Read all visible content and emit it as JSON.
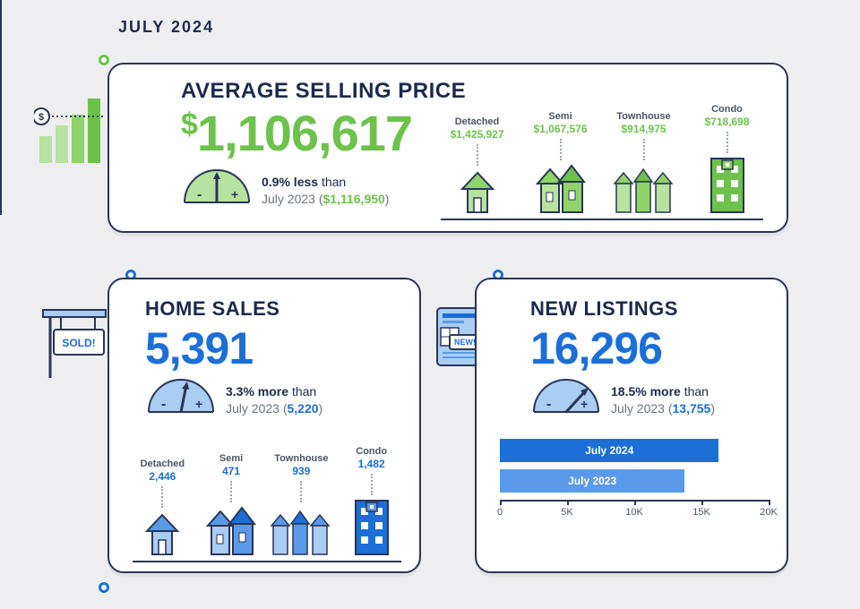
{
  "period": "JULY 2024",
  "colors": {
    "bg": "#eeeef0",
    "card_bg": "#ffffff",
    "outline": "#2a3556",
    "text_dark": "#1b2a4e",
    "text_muted": "#6b7280",
    "green": "#6cc24a",
    "green_light": "#b6e39f",
    "blue": "#1b6fd6",
    "blue_mid": "#5a9ae8",
    "blue_light": "#a9cdf3"
  },
  "avg_price": {
    "title": "AVERAGE SELLING PRICE",
    "currency": "$",
    "value": "1,106,617",
    "delta_pct": "0.9% less",
    "delta_word": "than",
    "prev_label": "July 2023",
    "prev_value": "$1,116,950",
    "breakdown": [
      {
        "label": "Detached",
        "value": "$1,425,927",
        "icon": "house",
        "shade": "light"
      },
      {
        "label": "Semi",
        "value": "$1,067,576",
        "icon": "semi",
        "shade": "mid"
      },
      {
        "label": "Townhouse",
        "value": "$914,975",
        "icon": "townrow",
        "shade": "mid"
      },
      {
        "label": "Condo",
        "value": "$718,698",
        "icon": "condo",
        "shade": "solid"
      }
    ]
  },
  "home_sales": {
    "title": "HOME SALES",
    "value": "5,391",
    "delta_pct": "3.3% more",
    "delta_word": "than",
    "prev_label": "July 2023",
    "prev_value": "5,220",
    "breakdown": [
      {
        "label": "Detached",
        "value": "2,446",
        "icon": "house",
        "shade": "light"
      },
      {
        "label": "Semi",
        "value": "471",
        "icon": "semi",
        "shade": "mid"
      },
      {
        "label": "Townhouse",
        "value": "939",
        "icon": "townrow",
        "shade": "mid"
      },
      {
        "label": "Condo",
        "value": "1,482",
        "icon": "condo",
        "shade": "solid"
      }
    ]
  },
  "new_listings": {
    "title": "NEW LISTINGS",
    "value": "16,296",
    "delta_pct": "18.5% more",
    "delta_word": "than",
    "prev_label": "July 2023",
    "prev_value": "13,755",
    "chart": {
      "type": "bar",
      "xmax": 20000,
      "ticks": [
        0,
        5000,
        10000,
        15000,
        20000
      ],
      "tick_labels": [
        "0",
        "5K",
        "10K",
        "15K",
        "20K"
      ],
      "bars": [
        {
          "label": "July 2024",
          "value": 16296,
          "color": "#1b6fd6"
        },
        {
          "label": "July 2023",
          "value": 13755,
          "color": "#5a9ae8"
        }
      ]
    }
  },
  "sold_badge": "SOLD!",
  "new_badge": "NEW!"
}
